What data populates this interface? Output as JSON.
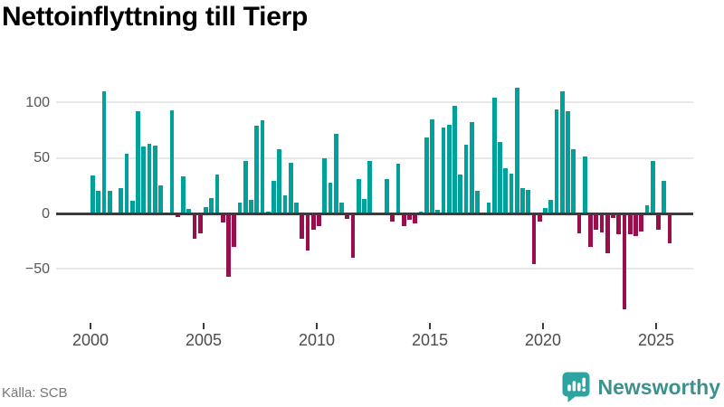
{
  "title": "Nettoinflyttning till Tierp",
  "source": "Källa: SCB",
  "brand": {
    "name": "Newsworthy"
  },
  "colors": {
    "positive": "#00a19a",
    "negative": "#9a0e4c",
    "grid": "#e7e7e7",
    "zero_axis": "#3b3b3b",
    "title": "#1c1c1c",
    "y_label": "#565658",
    "x_label": "#4c4c4e",
    "source_text": "#76777a",
    "brand_text": "#3c918e",
    "brand_icon": "#2da49f",
    "background": "#ffffff"
  },
  "chart_data": {
    "type": "bar",
    "title": "Nettoinflyttning till Tierp",
    "x_unit": "quarter",
    "x_start": "2000 Q1",
    "x_tick_labels": [
      "2000",
      "2005",
      "2010",
      "2015",
      "2020",
      "2025"
    ],
    "x_tick_indices": [
      0,
      20,
      40,
      60,
      80,
      100
    ],
    "y_ticks": [
      100,
      50,
      0,
      -50
    ],
    "ylim": [
      -95,
      120
    ],
    "grid": true,
    "legend": false,
    "values": [
      34,
      20,
      110,
      20,
      0,
      23,
      54,
      11,
      92,
      60,
      63,
      61,
      25,
      0,
      93,
      -3,
      33,
      4,
      -23,
      -18,
      6,
      14,
      35,
      -8,
      -57,
      -30,
      10,
      47,
      12,
      79,
      84,
      2,
      29,
      58,
      16,
      46,
      10,
      -23,
      -33,
      -15,
      -11,
      50,
      28,
      72,
      10,
      -5,
      -40,
      31,
      13,
      47,
      0,
      0,
      31,
      -7,
      45,
      -11,
      -6,
      -9,
      2,
      68,
      85,
      3,
      77,
      80,
      97,
      35,
      62,
      82,
      20,
      0,
      10,
      104,
      64,
      41,
      36,
      113,
      23,
      21,
      -46,
      -7,
      5,
      12,
      94,
      110,
      92,
      58,
      -18,
      51,
      -30,
      -15,
      -17,
      -36,
      -4,
      -19,
      -86,
      -19,
      -20,
      -16,
      7,
      47,
      -15,
      29,
      -27
    ]
  }
}
